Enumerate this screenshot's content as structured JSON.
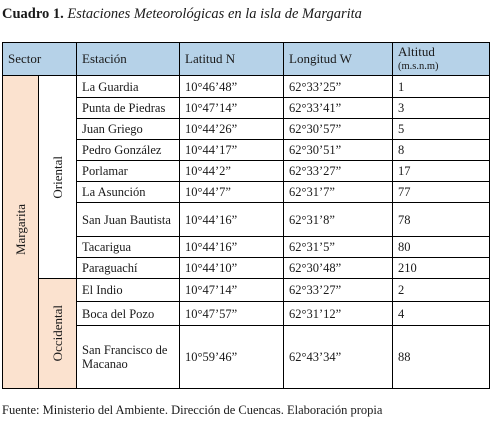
{
  "caption": {
    "number": "Cuadro 1.",
    "title": "Estaciones Meteorológicas en la isla de Margarita"
  },
  "table": {
    "headers": {
      "sector": "Sector",
      "estacion": "Estación",
      "latitud": "Latitud N",
      "longitud": "Longitud W",
      "altitud": "Altitud",
      "altitud_unit": "(m.s.n.m)"
    },
    "region": "Margarita",
    "subregions": {
      "oriental": "Oriental",
      "occidental": "Occidental"
    },
    "rows": [
      {
        "estacion": "La Guardia",
        "latitud": "10°46’48”",
        "longitud": "62°33’25”",
        "altitud": "1"
      },
      {
        "estacion": "Punta de Piedras",
        "latitud": "10°47’14”",
        "longitud": "62°33’41”",
        "altitud": "3"
      },
      {
        "estacion": "Juan Griego",
        "latitud": "10°44’26”",
        "longitud": "62°30’57”",
        "altitud": "5"
      },
      {
        "estacion": "Pedro González",
        "latitud": "10°44’17”",
        "longitud": "62°30’51”",
        "altitud": "8"
      },
      {
        "estacion": "Porlamar",
        "latitud": "10°44’2”",
        "longitud": "62°33’27”",
        "altitud": "17"
      },
      {
        "estacion": "La Asunción",
        "latitud": "10°44’7”",
        "longitud": "62°31’7”",
        "altitud": "77"
      },
      {
        "estacion": "San Juan Bautista",
        "latitud": "10°44’16”",
        "longitud": "62°31’8”",
        "altitud": "78"
      },
      {
        "estacion": "Tacarigua",
        "latitud": "10°44’16”",
        "longitud": "62°31’5”",
        "altitud": "80"
      },
      {
        "estacion": "Paraguachí",
        "latitud": "10°44’10”",
        "longitud": "62°30’48”",
        "altitud": "210"
      },
      {
        "estacion": "El Indio",
        "latitud": "10°47’14”",
        "longitud": "62°33’27”",
        "altitud": "2"
      },
      {
        "estacion": "Boca del Pozo",
        "latitud": "10°47’57”",
        "longitud": "62°31’12”",
        "altitud": "4"
      },
      {
        "estacion": "San Francisco de Macanao",
        "latitud": "10°59’46”",
        "longitud": "62°43’34”",
        "altitud": "88"
      }
    ]
  },
  "source": "Fuente: Ministerio del Ambiente. Dirección de Cuencas. Elaboración propia"
}
